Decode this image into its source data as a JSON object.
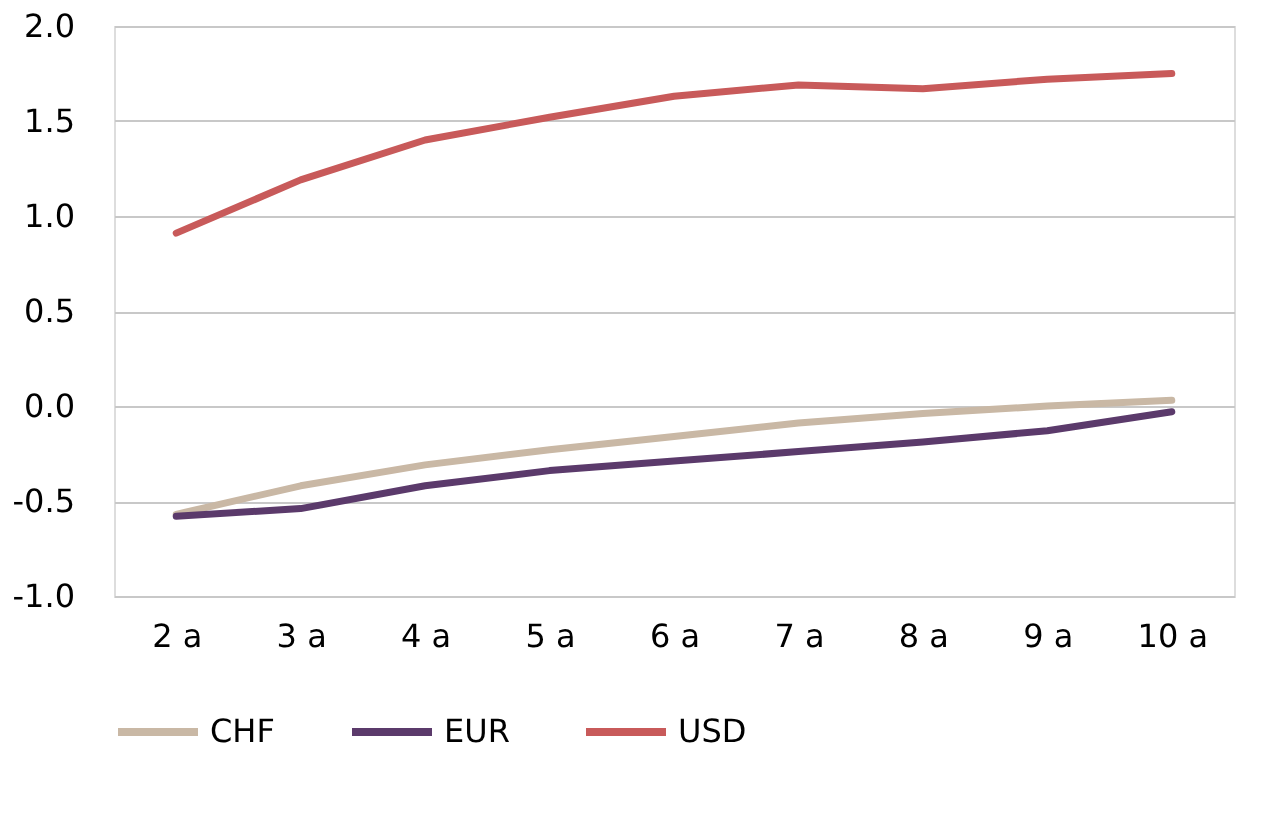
{
  "chart_data": {
    "type": "line",
    "categories": [
      "2 a",
      "3 a",
      "4 a",
      "5 a",
      "6 a",
      "7 a",
      "8 a",
      "9 a",
      "10 a"
    ],
    "series": [
      {
        "name": "CHF",
        "color": "#c9b8a5",
        "values": [
          -0.57,
          -0.42,
          -0.31,
          -0.23,
          -0.16,
          -0.09,
          -0.04,
          0.0,
          0.03
        ]
      },
      {
        "name": "EUR",
        "color": "#5b3a6b",
        "values": [
          -0.58,
          -0.54,
          -0.42,
          -0.34,
          -0.29,
          -0.24,
          -0.19,
          -0.13,
          -0.03
        ]
      },
      {
        "name": "USD",
        "color": "#c85a5a",
        "values": [
          0.91,
          1.19,
          1.4,
          1.52,
          1.63,
          1.69,
          1.67,
          1.72,
          1.75
        ]
      }
    ],
    "ylim": [
      -1.0,
      2.0
    ],
    "yticks": [
      {
        "value": -1.0,
        "label": "-1.0"
      },
      {
        "value": -0.5,
        "label": "-0.5"
      },
      {
        "value": 0.0,
        "label": "0.0"
      },
      {
        "value": 0.5,
        "label": "0.5"
      },
      {
        "value": 1.0,
        "label": "1.0"
      },
      {
        "value": 1.5,
        "label": "1.5"
      },
      {
        "value": 2.0,
        "label": "2.0"
      }
    ],
    "grid": "y",
    "legend": "bottom"
  }
}
